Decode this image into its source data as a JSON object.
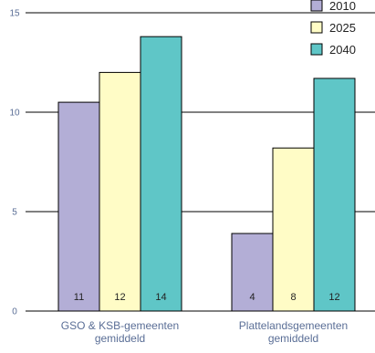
{
  "chart_data": {
    "type": "bar",
    "categories": [
      "GSO & KSB-gemeenten gemiddeld",
      "Plattelandsgemeenten gemiddeld"
    ],
    "category_lines": [
      [
        "GSO & KSB-gemeenten",
        "gemiddeld"
      ],
      [
        "Plattelandsgemeenten",
        "gemiddeld"
      ]
    ],
    "series": [
      {
        "name": "2010",
        "values": [
          10.5,
          3.9
        ],
        "labels": [
          "11",
          "4"
        ],
        "color": "#b3aed6"
      },
      {
        "name": "2025",
        "values": [
          12.0,
          8.2
        ],
        "labels": [
          "12",
          "8"
        ],
        "color": "#fffcc6"
      },
      {
        "name": "2040",
        "values": [
          13.8,
          11.7
        ],
        "labels": [
          "14",
          "12"
        ],
        "color": "#5fc6c7"
      }
    ],
    "ylim": [
      0,
      15
    ],
    "yticks": [
      "0",
      "5",
      "10",
      "15"
    ],
    "grid": true,
    "legend": "top-right"
  }
}
